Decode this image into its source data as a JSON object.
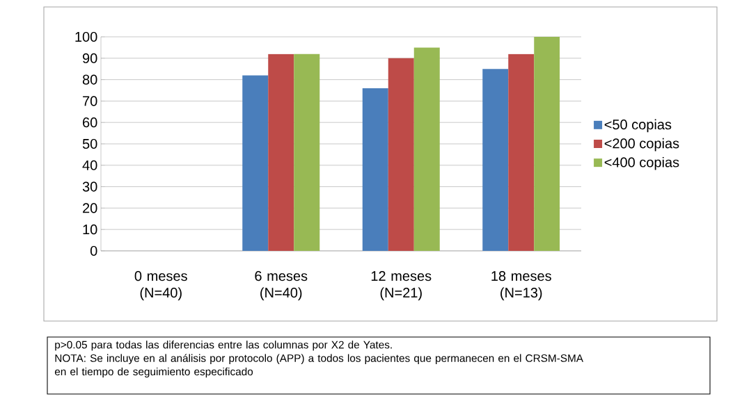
{
  "chart_data": {
    "type": "bar",
    "categories": [
      "0 meses (N=40)",
      "6 meses (N=40)",
      "12 meses (N=21)",
      "18 meses (N=13)"
    ],
    "series": [
      {
        "name": "<50 copias",
        "color": "#4a7ebb",
        "values": [
          null,
          82,
          76,
          85
        ]
      },
      {
        "name": "<200 copias",
        "color": "#be4b48",
        "values": [
          null,
          92,
          90,
          92
        ]
      },
      {
        "name": "<400 copias",
        "color": "#98b954",
        "values": [
          null,
          92,
          95,
          100
        ]
      }
    ],
    "ylim": [
      0,
      100
    ],
    "yticks": [
      0,
      10,
      20,
      30,
      40,
      50,
      60,
      70,
      80,
      90,
      100
    ],
    "grid": "y",
    "legend": "right",
    "annotations": [
      "p>0.05 para todas las diferencias entre las columnas por X2 de Yates.",
      "NOTA: Se incluye en al análisis por protocolo (APP) a todos los pacientes que permanecen en el CRSM-SMA en el tiempo de seguimiento especificado"
    ]
  }
}
